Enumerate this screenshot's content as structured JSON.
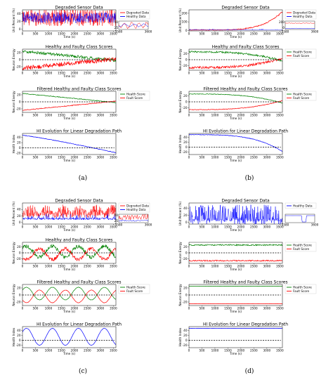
{
  "colors": {
    "red": "#ff0000",
    "blue": "#0000ff",
    "green": "#008000",
    "black": "#000000"
  },
  "chart_data": [
    {
      "id": "a",
      "sub_label": "(a)",
      "subplots": [
        {
          "type": "line",
          "title": "Degraded Sensor Data",
          "xlabel": "Time (s)",
          "ylabel": "Unit Percent (%)",
          "xlim": [
            0,
            3600
          ],
          "ylim": [
            -5,
            50
          ],
          "x_ticks": [
            0,
            500,
            1000,
            1500,
            2000,
            2500,
            3000,
            3500
          ],
          "y_ticks": [
            0,
            20,
            40
          ],
          "series": [
            {
              "name": "Degraded Data",
              "color": "red",
              "pattern": "noise_wide",
              "center": 30,
              "amp": 22
            },
            {
              "name": "Healthy Data",
              "color": "blue",
              "pattern": "noise_wide",
              "center": 30,
              "amp": 14
            }
          ],
          "legend": "top-right",
          "inset": {
            "xlim": [
              3580,
              3600
            ],
            "x_ticks": [
              3580,
              3600
            ],
            "y_ticks": [
              25,
              50
            ],
            "pattern": "inset_a"
          }
        },
        {
          "type": "line",
          "title": "Healthy and Faulty Class Scores",
          "xlabel": "Time (s)",
          "ylabel": "Neuron Energy",
          "xlim": [
            0,
            3600
          ],
          "ylim": [
            -30,
            30
          ],
          "x_ticks": [
            0,
            500,
            1000,
            1500,
            2000,
            2500,
            3000,
            3500
          ],
          "y_ticks": [
            -20,
            0,
            20
          ],
          "series": [
            {
              "name": "Health Score",
              "color": "green",
              "pattern": "converge_down",
              "noise": 4
            },
            {
              "name": "Fault Score",
              "color": "red",
              "pattern": "converge_up",
              "noise": 6
            }
          ],
          "legend": "none",
          "zero_line": true
        },
        {
          "type": "line",
          "title": "Filtered Healthy and Faulty Class Scores",
          "xlabel": "Time (s)",
          "ylabel": "Neuron Energy",
          "xlim": [
            0,
            3600
          ],
          "ylim": [
            -30,
            30
          ],
          "x_ticks": [
            0,
            500,
            1000,
            1500,
            2000,
            2500,
            3000,
            3500
          ],
          "y_ticks": [
            -20,
            0,
            20
          ],
          "series": [
            {
              "name": "Health Score",
              "color": "green",
              "pattern": "converge_down",
              "noise": 1
            },
            {
              "name": "Fault Score",
              "color": "red",
              "pattern": "converge_up",
              "noise": 1
            }
          ],
          "legend": "top-right",
          "zero_line": true
        },
        {
          "type": "line",
          "title": "HI Evolution for Linear Degradation Path",
          "xlabel": "Time (s)",
          "ylabel": "Health Index",
          "xlim": [
            0,
            3600
          ],
          "ylim": [
            -25,
            55
          ],
          "x_ticks": [
            0,
            500,
            1000,
            1500,
            2000,
            2500,
            3000,
            3500
          ],
          "y_ticks": [
            -20,
            0,
            20,
            40
          ],
          "series": [
            {
              "name": "HI",
              "color": "blue",
              "pattern": "hi_linear",
              "noise": 1
            }
          ],
          "legend": "none",
          "zero_line": true
        }
      ]
    },
    {
      "id": "b",
      "sub_label": "(b)",
      "subplots": [
        {
          "type": "line",
          "title": "Degraded Sensor Data",
          "xlabel": "Time (s)",
          "ylabel": "Unit Percent (%)",
          "xlim": [
            0,
            3600
          ],
          "ylim": [
            -5,
            240
          ],
          "x_ticks": [
            0,
            500,
            1000,
            1500,
            2000,
            2500,
            3000,
            3500
          ],
          "y_ticks": [
            0,
            100,
            200
          ],
          "series": [
            {
              "name": "Degraded Data",
              "color": "red",
              "pattern": "exp_rise",
              "base": 5,
              "top": 220
            },
            {
              "name": "Healthy Data",
              "color": "blue",
              "pattern": "noise_low",
              "center": 5,
              "amp": 8
            }
          ],
          "legend": "top-right",
          "inset": {
            "xlim": [
              3580,
              3600
            ],
            "x_ticks": [
              3580,
              3600
            ],
            "y_ticks": [
              0,
              200
            ],
            "pattern": "inset_b"
          }
        },
        {
          "type": "line",
          "title": "Healthy and Faulty Class Scores",
          "xlabel": "Time (s)",
          "ylabel": "Neuron Energy",
          "xlim": [
            0,
            3600
          ],
          "ylim": [
            -35,
            35
          ],
          "x_ticks": [
            0,
            500,
            1000,
            1500,
            2000,
            2500,
            3000,
            3500
          ],
          "y_ticks": [
            -20,
            0,
            20
          ],
          "series": [
            {
              "name": "Health Score",
              "color": "green",
              "pattern": "late_converge_down",
              "noise": 3
            },
            {
              "name": "Fault Score",
              "color": "red",
              "pattern": "late_converge_up",
              "noise": 4
            }
          ],
          "legend": "top-right",
          "zero_line": true
        },
        {
          "type": "line",
          "title": "Filtered Healthy and Faulty Class Scores",
          "xlabel": "Time (s)",
          "ylabel": "Neuron Energy",
          "xlim": [
            0,
            3600
          ],
          "ylim": [
            -35,
            35
          ],
          "x_ticks": [
            0,
            500,
            1000,
            1500,
            2000,
            2500,
            3000,
            3500
          ],
          "y_ticks": [
            -20,
            0,
            20
          ],
          "series": [
            {
              "name": "Health Score",
              "color": "green",
              "pattern": "late_converge_down",
              "noise": 1
            },
            {
              "name": "Fault Score",
              "color": "red",
              "pattern": "late_converge_up",
              "noise": 1
            }
          ],
          "legend": "top-right",
          "zero_line": true
        },
        {
          "type": "line",
          "title": "HI Evolution for Linear Degradation Path",
          "xlabel": "Time (s)",
          "ylabel": "Health Index",
          "xlim": [
            0,
            3600
          ],
          "ylim": [
            -30,
            55
          ],
          "x_ticks": [
            0,
            500,
            1000,
            1500,
            2000,
            2500,
            3000,
            3500
          ],
          "y_ticks": [
            -20,
            0,
            20,
            40
          ],
          "series": [
            {
              "name": "HI",
              "color": "blue",
              "pattern": "hi_late",
              "noise": 1
            }
          ],
          "legend": "none",
          "zero_line": true
        }
      ]
    },
    {
      "id": "c",
      "sub_label": "(c)",
      "subplots": [
        {
          "type": "line",
          "title": "Degraded Sensor Data",
          "xlabel": "Time (s)",
          "ylabel": "Unit Percent (%)",
          "xlim": [
            0,
            3600
          ],
          "ylim": [
            -5,
            60
          ],
          "x_ticks": [
            0,
            500,
            1000,
            1500,
            2000,
            2500,
            3000,
            3500
          ],
          "y_ticks": [
            0,
            20,
            40
          ],
          "series": [
            {
              "name": "Degraded Data",
              "color": "red",
              "pattern": "burst",
              "center": 15,
              "amp": 40
            },
            {
              "name": "Healthy Data",
              "color": "blue",
              "pattern": "noise_low",
              "center": 8,
              "amp": 12
            }
          ],
          "legend": "top-right",
          "inset": {
            "xlim": [
              3580,
              3600
            ],
            "x_ticks": [
              3580,
              3600
            ],
            "y_ticks": [
              25,
              50
            ],
            "pattern": "inset_c"
          }
        },
        {
          "type": "line",
          "title": "Healthy and Faulty Class Scores",
          "xlabel": "Time (s)",
          "ylabel": "Neuron Energy",
          "xlim": [
            0,
            3600
          ],
          "ylim": [
            -35,
            35
          ],
          "x_ticks": [
            0,
            500,
            1000,
            1500,
            2000,
            2500,
            3000,
            3500
          ],
          "y_ticks": [
            -20,
            0,
            20
          ],
          "series": [
            {
              "name": "Health Score",
              "color": "green",
              "pattern": "osc_pos",
              "noise": 6
            },
            {
              "name": "Fault Score",
              "color": "red",
              "pattern": "osc_neg",
              "noise": 6
            }
          ],
          "legend": "none",
          "zero_line": true
        },
        {
          "type": "line",
          "title": "Filtered Healthy and Faulty Class Scores",
          "xlabel": "Time (s)",
          "ylabel": "Neuron Energy",
          "xlim": [
            0,
            3600
          ],
          "ylim": [
            -30,
            30
          ],
          "x_ticks": [
            0,
            500,
            1000,
            1500,
            2000,
            2500,
            3000,
            3500
          ],
          "y_ticks": [
            -20,
            0,
            20
          ],
          "series": [
            {
              "name": "Health Score",
              "color": "green",
              "pattern": "osc_pos",
              "noise": 0.5
            },
            {
              "name": "Fault Score",
              "color": "red",
              "pattern": "osc_neg",
              "noise": 0.5
            }
          ],
          "legend": "top-right",
          "zero_line": true
        },
        {
          "type": "line",
          "title": "HI Evolution for Linear Degradation Path",
          "xlabel": "Time (s)",
          "ylabel": "Health Index",
          "xlim": [
            0,
            3600
          ],
          "ylim": [
            -30,
            55
          ],
          "x_ticks": [
            0,
            500,
            1000,
            1500,
            2000,
            2500,
            3000,
            3500
          ],
          "y_ticks": [
            -20,
            0,
            20,
            40
          ],
          "series": [
            {
              "name": "HI",
              "color": "blue",
              "pattern": "hi_osc",
              "noise": 0.5
            }
          ],
          "legend": "none",
          "zero_line": true
        }
      ]
    },
    {
      "id": "d",
      "sub_label": "(d)",
      "subplots": [
        {
          "type": "line",
          "title": "Degraded Sensor Data",
          "xlabel": "Time (s)",
          "ylabel": "Unit Percent (%)",
          "xlim": [
            0,
            3600
          ],
          "ylim": [
            -5,
            55
          ],
          "x_ticks": [
            0,
            500,
            1000,
            1500,
            2000,
            2500,
            3000,
            3500
          ],
          "y_ticks": [
            0,
            20,
            40
          ],
          "series": [
            {
              "name": "Healthy Data",
              "color": "blue",
              "pattern": "noise_full",
              "center": 20,
              "amp": 30
            }
          ],
          "legend": "top-right",
          "inset": {
            "xlim": [
              3580,
              3600
            ],
            "x_ticks": [
              3580,
              3600
            ],
            "y_ticks": [],
            "pattern": "inset_d"
          }
        },
        {
          "type": "line",
          "title": "",
          "xlabel": "Time (s)",
          "ylabel": "Neuron Energy",
          "xlim": [
            0,
            3600
          ],
          "ylim": [
            -35,
            35
          ],
          "x_ticks": [
            0,
            500,
            1000,
            1500,
            2000,
            2500,
            3000,
            3500
          ],
          "y_ticks": [
            -20,
            0,
            20
          ],
          "series": [
            {
              "name": "Health Score",
              "color": "green",
              "pattern": "flat",
              "level": 26,
              "noise": 2
            },
            {
              "name": "Fault Score",
              "color": "red",
              "pattern": "flat",
              "level": -26,
              "noise": 2
            }
          ],
          "legend": "top-right",
          "zero_line": true
        },
        {
          "type": "line",
          "title": "Filtered Healthy and Faulty Class Scores",
          "xlabel": "Time (s)",
          "ylabel": "Neuron Energy",
          "xlim": [
            0,
            3600
          ],
          "ylim": [
            -30,
            30
          ],
          "x_ticks": [
            0,
            500,
            1000,
            1500,
            2000,
            2500,
            3000,
            3500
          ],
          "y_ticks": [
            -20,
            0,
            20
          ],
          "series": [
            {
              "name": "Health Score",
              "color": "green",
              "pattern": "flat",
              "level": 25,
              "noise": 0.2
            },
            {
              "name": "Fault Score",
              "color": "red",
              "pattern": "flat",
              "level": -25,
              "noise": 0.2
            }
          ],
          "legend": "top-right",
          "zero_line": true
        },
        {
          "type": "line",
          "title": "HI Evolution for Linear Degradation Path",
          "xlabel": "Time (s)",
          "ylabel": "Health Index",
          "xlim": [
            0,
            3600
          ],
          "ylim": [
            -30,
            55
          ],
          "x_ticks": [
            0,
            500,
            1000,
            1500,
            2000,
            2500,
            3000,
            3500
          ],
          "y_ticks": [
            -20,
            0,
            20,
            40
          ],
          "series": [
            {
              "name": "HI",
              "color": "blue",
              "pattern": "flat",
              "level": 48,
              "noise": 0.5
            }
          ],
          "legend": "none",
          "zero_line": true
        }
      ]
    }
  ]
}
